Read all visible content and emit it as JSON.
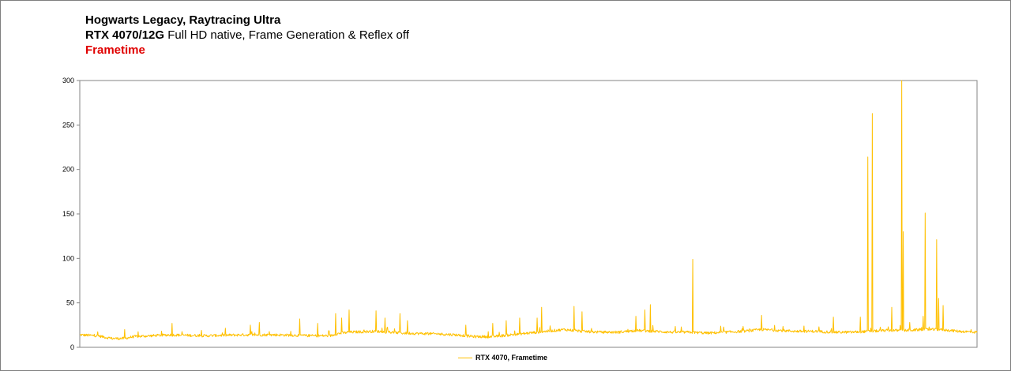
{
  "title": {
    "line1": "Hogwarts Legacy, Raytracing Ultra",
    "line2_strong": "RTX 4070/12G",
    "line2_rest": "Full HD native, Frame Generation & Reflex off",
    "line3": "Frametime"
  },
  "colors": {
    "series": "#ffc000",
    "frametime_label": "#e00000",
    "axis": "#868686",
    "background": "#ffffff"
  },
  "chart_data": {
    "type": "line",
    "title": "Hogwarts Legacy, Raytracing Ultra",
    "subtitle": "RTX 4070/12G Full HD native, Frame Generation & Reflex off",
    "metric": "Frametime",
    "ylim": [
      0,
      300
    ],
    "yticks": [
      "0",
      "50",
      "100",
      "150",
      "200",
      "250",
      "300"
    ],
    "grid": false,
    "legend_position": "bottom",
    "series": [
      {
        "name": "RTX 4070, Frametime",
        "color": "#ffc000",
        "baseline": [
          [
            0.0,
            14
          ],
          [
            0.02,
            13
          ],
          [
            0.035,
            10
          ],
          [
            0.05,
            10
          ],
          [
            0.06,
            12
          ],
          [
            0.08,
            13
          ],
          [
            0.1,
            14
          ],
          [
            0.14,
            13
          ],
          [
            0.18,
            14
          ],
          [
            0.22,
            14
          ],
          [
            0.26,
            13
          ],
          [
            0.28,
            13
          ],
          [
            0.285,
            15
          ],
          [
            0.3,
            17
          ],
          [
            0.33,
            18
          ],
          [
            0.36,
            16
          ],
          [
            0.4,
            15
          ],
          [
            0.42,
            14
          ],
          [
            0.44,
            12
          ],
          [
            0.46,
            12
          ],
          [
            0.48,
            14
          ],
          [
            0.5,
            16
          ],
          [
            0.52,
            18
          ],
          [
            0.54,
            20
          ],
          [
            0.56,
            18
          ],
          [
            0.58,
            17
          ],
          [
            0.6,
            17
          ],
          [
            0.62,
            19
          ],
          [
            0.64,
            18
          ],
          [
            0.66,
            17
          ],
          [
            0.68,
            17
          ],
          [
            0.7,
            16
          ],
          [
            0.72,
            17
          ],
          [
            0.74,
            18
          ],
          [
            0.76,
            20
          ],
          [
            0.78,
            19
          ],
          [
            0.8,
            18
          ],
          [
            0.82,
            18
          ],
          [
            0.84,
            17
          ],
          [
            0.86,
            17
          ],
          [
            0.88,
            18
          ],
          [
            0.9,
            19
          ],
          [
            0.92,
            19
          ],
          [
            0.94,
            20
          ],
          [
            0.96,
            20
          ],
          [
            0.98,
            18
          ],
          [
            1.0,
            17
          ]
        ],
        "spikes": [
          [
            0.05,
            20
          ],
          [
            0.103,
            27
          ],
          [
            0.19,
            25
          ],
          [
            0.2,
            28
          ],
          [
            0.245,
            32
          ],
          [
            0.265,
            27
          ],
          [
            0.285,
            38
          ],
          [
            0.292,
            33
          ],
          [
            0.3,
            42
          ],
          [
            0.33,
            41
          ],
          [
            0.34,
            33
          ],
          [
            0.357,
            38
          ],
          [
            0.365,
            30
          ],
          [
            0.43,
            25
          ],
          [
            0.46,
            27
          ],
          [
            0.475,
            30
          ],
          [
            0.49,
            33
          ],
          [
            0.51,
            33
          ],
          [
            0.515,
            45
          ],
          [
            0.551,
            46
          ],
          [
            0.56,
            40
          ],
          [
            0.62,
            35
          ],
          [
            0.63,
            42
          ],
          [
            0.636,
            48
          ],
          [
            0.683,
            99
          ],
          [
            0.76,
            36
          ],
          [
            0.84,
            34
          ],
          [
            0.87,
            34
          ],
          [
            0.878,
            214
          ],
          [
            0.883,
            263
          ],
          [
            0.905,
            45
          ],
          [
            0.916,
            300
          ],
          [
            0.918,
            130
          ],
          [
            0.925,
            28
          ],
          [
            0.94,
            35
          ],
          [
            0.942,
            151
          ],
          [
            0.955,
            121
          ],
          [
            0.957,
            55
          ],
          [
            0.962,
            47
          ]
        ]
      }
    ]
  },
  "legend": {
    "label": "RTX 4070, Frametime"
  }
}
